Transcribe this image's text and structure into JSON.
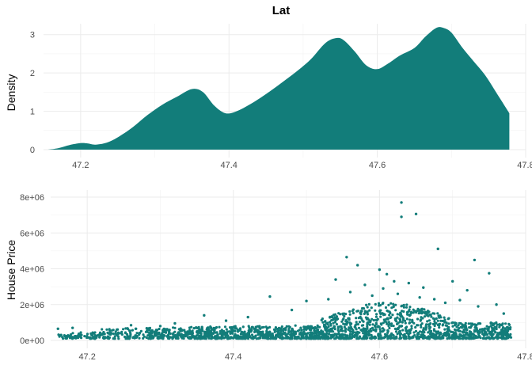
{
  "chart_data": [
    {
      "type": "area",
      "title": "Lat",
      "xlabel": "",
      "ylabel": "Density",
      "xlim": [
        47.15,
        47.8
      ],
      "ylim": [
        0,
        3.2
      ],
      "x_ticks": [
        "47.2",
        "47.4",
        "47.6",
        "47.8"
      ],
      "y_ticks": [
        "0",
        "1",
        "2",
        "3"
      ],
      "grid": true,
      "color": "#127d7a",
      "x": [
        47.156,
        47.17,
        47.185,
        47.2,
        47.21,
        47.22,
        47.235,
        47.25,
        47.27,
        47.29,
        47.31,
        47.33,
        47.35,
        47.365,
        47.38,
        47.395,
        47.41,
        47.43,
        47.45,
        47.47,
        47.49,
        47.51,
        47.53,
        47.545,
        47.555,
        47.57,
        47.585,
        47.6,
        47.615,
        47.63,
        47.65,
        47.665,
        47.68,
        47.69,
        47.7,
        47.715,
        47.73,
        47.745,
        47.76,
        47.778
      ],
      "values": [
        0.0,
        0.04,
        0.12,
        0.17,
        0.16,
        0.13,
        0.18,
        0.32,
        0.58,
        0.9,
        1.17,
        1.38,
        1.58,
        1.5,
        1.15,
        0.95,
        1.0,
        1.2,
        1.45,
        1.73,
        2.02,
        2.35,
        2.78,
        2.91,
        2.85,
        2.55,
        2.2,
        2.1,
        2.25,
        2.45,
        2.65,
        2.95,
        3.18,
        3.17,
        3.05,
        2.65,
        2.3,
        1.95,
        1.5,
        0.95
      ]
    },
    {
      "type": "scatter",
      "title": "",
      "xlabel": "",
      "ylabel": "House Price",
      "xlim": [
        47.15,
        47.8
      ],
      "ylim": [
        0,
        8000000
      ],
      "x_ticks": [
        "47.2",
        "47.4",
        "47.6",
        "47.8"
      ],
      "y_ticks": [
        "0e+00",
        "2e+06",
        "4e+06",
        "6e+06",
        "8e+06"
      ],
      "grid": true,
      "color": "#127d7a",
      "points": [
        [
          47.63,
          7700000
        ],
        [
          47.63,
          6900000
        ],
        [
          47.65,
          7060000
        ],
        [
          47.68,
          5110000
        ],
        [
          47.73,
          4490000
        ],
        [
          47.555,
          4650000
        ],
        [
          47.57,
          4200000
        ],
        [
          47.6,
          3950000
        ],
        [
          47.61,
          3700000
        ],
        [
          47.45,
          2450000
        ],
        [
          47.5,
          2200000
        ],
        [
          47.54,
          3400000
        ],
        [
          47.58,
          3100000
        ],
        [
          47.62,
          3300000
        ],
        [
          47.64,
          3200000
        ],
        [
          47.66,
          2950000
        ],
        [
          47.7,
          3300000
        ],
        [
          47.72,
          2800000
        ],
        [
          47.75,
          3750000
        ],
        [
          47.76,
          2000000
        ],
        [
          47.36,
          1400000
        ],
        [
          47.32,
          950000
        ],
        [
          47.26,
          850000
        ],
        [
          47.18,
          700000
        ],
        [
          47.16,
          650000
        ],
        [
          47.56,
          2700000
        ],
        [
          47.59,
          2500000
        ],
        [
          47.605,
          2900000
        ],
        [
          47.625,
          2600000
        ],
        [
          47.655,
          2400000
        ],
        [
          47.675,
          2300000
        ],
        [
          47.69,
          2100000
        ],
        [
          47.71,
          2250000
        ],
        [
          47.735,
          1900000
        ],
        [
          47.77,
          1500000
        ],
        [
          47.53,
          2300000
        ],
        [
          47.48,
          1700000
        ],
        [
          47.42,
          1300000
        ],
        [
          47.39,
          1100000
        ],
        [
          47.3,
          800000
        ]
      ]
    }
  ]
}
